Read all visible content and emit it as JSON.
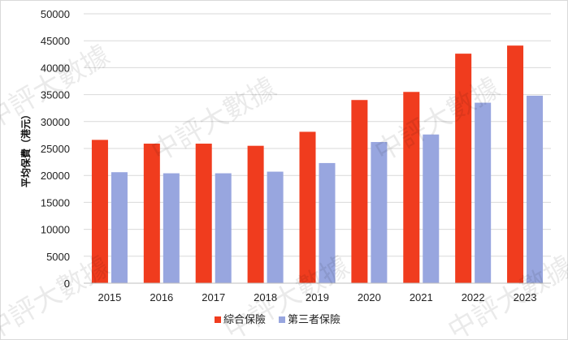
{
  "chart_data": {
    "type": "bar",
    "ylabel": "平均保費（港元）",
    "ylim": [
      0,
      50000
    ],
    "yticks": [
      0,
      5000,
      10000,
      15000,
      20000,
      25000,
      30000,
      35000,
      40000,
      45000,
      50000
    ],
    "grid": true,
    "legend_position": "bottom",
    "categories": [
      "2015",
      "2016",
      "2017",
      "2018",
      "2019",
      "2020",
      "2021",
      "2022",
      "2023"
    ],
    "series": [
      {
        "name": "綜合保險",
        "color": "#f03c1e",
        "values": [
          26600,
          25900,
          25900,
          25500,
          28100,
          34000,
          35500,
          42600,
          44100
        ]
      },
      {
        "name": "第三者保險",
        "color": "#98a6df",
        "values": [
          20600,
          20400,
          20400,
          20700,
          22300,
          26200,
          27600,
          33500,
          34800
        ]
      }
    ]
  },
  "watermark": "中評大數據"
}
